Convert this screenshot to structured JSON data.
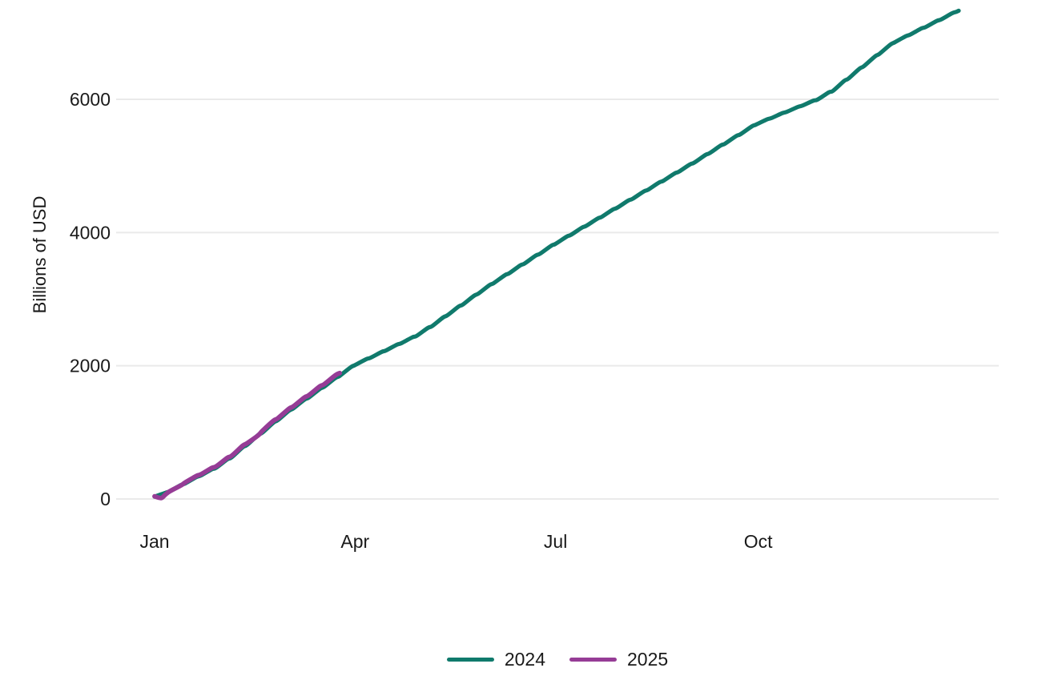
{
  "chart_data": {
    "type": "line",
    "title": "",
    "xlabel": "",
    "ylabel": "Billions of USD",
    "x_unit": "day_of_year",
    "xlim": [
      1,
      366
    ],
    "ylim": [
      0,
      7500
    ],
    "grid": "horizontal-only",
    "legend_position": "bottom-center",
    "colors": {
      "grid": "#eaeaea",
      "text": "#1a1a1a",
      "background": "#ffffff"
    },
    "y_ticks": [
      {
        "value": 0,
        "label": "0"
      },
      {
        "value": 2000,
        "label": "2000"
      },
      {
        "value": 4000,
        "label": "4000"
      },
      {
        "value": 6000,
        "label": "6000"
      }
    ],
    "x_ticks": [
      {
        "day": 1,
        "label": "Jan"
      },
      {
        "day": 92,
        "label": "Apr"
      },
      {
        "day": 183,
        "label": "Jul"
      },
      {
        "day": 275,
        "label": "Oct"
      }
    ],
    "series": [
      {
        "name": "2024",
        "color": "#107a6c",
        "stroke_width": 5.2,
        "points": [
          [
            1,
            35
          ],
          [
            6,
            94
          ],
          [
            8,
            117
          ],
          [
            13,
            211
          ],
          [
            15,
            235
          ],
          [
            20,
            329
          ],
          [
            22,
            352
          ],
          [
            27,
            446
          ],
          [
            29,
            470
          ],
          [
            34,
            595
          ],
          [
            36,
            626
          ],
          [
            41,
            775
          ],
          [
            43,
            812
          ],
          [
            48,
            961
          ],
          [
            50,
            998
          ],
          [
            55,
            1147
          ],
          [
            57,
            1184
          ],
          [
            62,
            1325
          ],
          [
            64,
            1360
          ],
          [
            69,
            1490
          ],
          [
            71,
            1522
          ],
          [
            76,
            1652
          ],
          [
            78,
            1685
          ],
          [
            83,
            1815
          ],
          [
            85,
            1847
          ],
          [
            90,
            1977
          ],
          [
            92,
            2010
          ],
          [
            97,
            2098
          ],
          [
            99,
            2120
          ],
          [
            104,
            2207
          ],
          [
            106,
            2229
          ],
          [
            111,
            2317
          ],
          [
            113,
            2339
          ],
          [
            118,
            2427
          ],
          [
            120,
            2449
          ],
          [
            125,
            2567
          ],
          [
            127,
            2596
          ],
          [
            132,
            2726
          ],
          [
            134,
            2759
          ],
          [
            139,
            2889
          ],
          [
            141,
            2921
          ],
          [
            146,
            3051
          ],
          [
            148,
            3084
          ],
          [
            153,
            3210
          ],
          [
            155,
            3242
          ],
          [
            160,
            3360
          ],
          [
            162,
            3389
          ],
          [
            167,
            3507
          ],
          [
            169,
            3536
          ],
          [
            174,
            3654
          ],
          [
            176,
            3683
          ],
          [
            181,
            3801
          ],
          [
            183,
            3830
          ],
          [
            188,
            3938
          ],
          [
            190,
            3965
          ],
          [
            195,
            4074
          ],
          [
            197,
            4101
          ],
          [
            202,
            4209
          ],
          [
            204,
            4236
          ],
          [
            209,
            4345
          ],
          [
            211,
            4372
          ],
          [
            216,
            4480
          ],
          [
            218,
            4507
          ],
          [
            223,
            4616
          ],
          [
            225,
            4643
          ],
          [
            230,
            4751
          ],
          [
            232,
            4778
          ],
          [
            237,
            4887
          ],
          [
            239,
            4914
          ],
          [
            244,
            5023
          ],
          [
            246,
            5050
          ],
          [
            251,
            5164
          ],
          [
            253,
            5193
          ],
          [
            258,
            5307
          ],
          [
            260,
            5335
          ],
          [
            265,
            5449
          ],
          [
            267,
            5477
          ],
          [
            272,
            5591
          ],
          [
            274,
            5620
          ],
          [
            279,
            5699
          ],
          [
            281,
            5719
          ],
          [
            286,
            5793
          ],
          [
            288,
            5812
          ],
          [
            293,
            5886
          ],
          [
            295,
            5905
          ],
          [
            300,
            5979
          ],
          [
            302,
            5997
          ],
          [
            307,
            6103
          ],
          [
            309,
            6129
          ],
          [
            314,
            6276
          ],
          [
            316,
            6313
          ],
          [
            321,
            6461
          ],
          [
            323,
            6498
          ],
          [
            328,
            6645
          ],
          [
            330,
            6682
          ],
          [
            335,
            6821
          ],
          [
            337,
            6856
          ],
          [
            342,
            6948
          ],
          [
            344,
            6971
          ],
          [
            349,
            7063
          ],
          [
            351,
            7085
          ],
          [
            356,
            7176
          ],
          [
            358,
            7199
          ],
          [
            363,
            7291
          ],
          [
            365,
            7314
          ],
          [
            366,
            7330
          ]
        ]
      },
      {
        "name": "2025",
        "color": "#963c96",
        "stroke_width": 5.8,
        "points": [
          [
            1,
            40
          ],
          [
            4,
            15
          ],
          [
            6,
            70
          ],
          [
            8,
            118
          ],
          [
            13,
            205
          ],
          [
            15,
            250
          ],
          [
            20,
            346
          ],
          [
            22,
            370
          ],
          [
            27,
            466
          ],
          [
            29,
            490
          ],
          [
            34,
            617
          ],
          [
            36,
            649
          ],
          [
            41,
            799
          ],
          [
            43,
            837
          ],
          [
            48,
            955
          ],
          [
            50,
            1025
          ],
          [
            55,
            1175
          ],
          [
            57,
            1213
          ],
          [
            62,
            1355
          ],
          [
            64,
            1391
          ],
          [
            69,
            1524
          ],
          [
            71,
            1557
          ],
          [
            76,
            1690
          ],
          [
            78,
            1723
          ],
          [
            83,
            1856
          ],
          [
            85,
            1890
          ]
        ]
      }
    ]
  },
  "legend": {
    "items": [
      {
        "label": "2024",
        "color": "#107a6c"
      },
      {
        "label": "2025",
        "color": "#963c96"
      }
    ]
  }
}
